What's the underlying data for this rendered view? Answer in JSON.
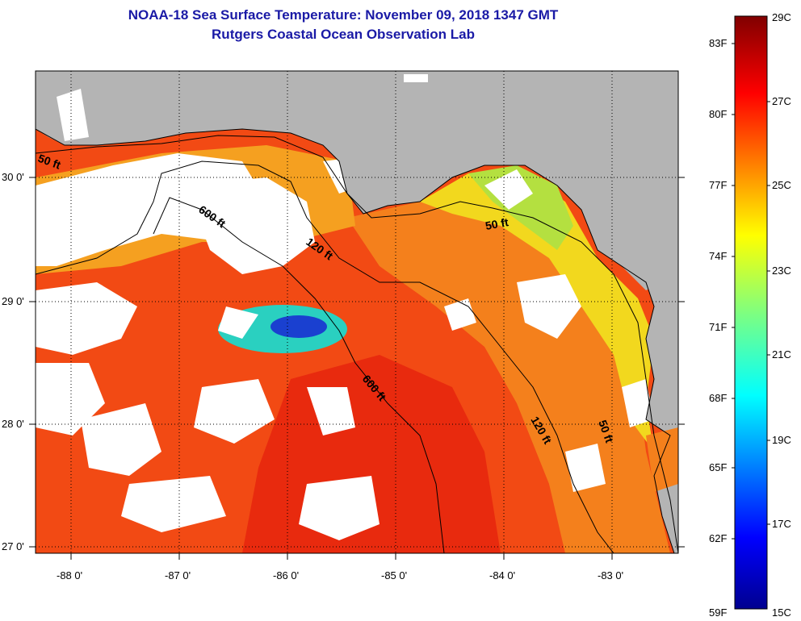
{
  "header": {
    "title": "NOAA-18 Sea Surface Temperature:  November 09, 2018 1347 GMT",
    "subtitle": "Rutgers Coastal Ocean Observation Lab"
  },
  "map": {
    "lon_ticks": [
      "-88 0'",
      "-87 0'",
      "-86 0'",
      "-85 0'",
      "-84 0'",
      "-83 0'"
    ],
    "lat_ticks": [
      "30 0'",
      "29 0'",
      "28 0'",
      "27 0'"
    ],
    "isobath_labels": [
      "50 ft",
      "600 ft",
      "120 ft",
      "50 ft",
      "600 ft",
      "120 ft",
      "50 ft"
    ]
  },
  "colorbar": {
    "fahrenheit_labels": [
      "83F",
      "80F",
      "77F",
      "74F",
      "71F",
      "68F",
      "65F",
      "62F",
      "59F"
    ],
    "celsius_labels": [
      "29C",
      "27C",
      "25C",
      "23C",
      "21C",
      "19C",
      "17C",
      "15C"
    ]
  },
  "colors": {
    "land": "#b4b4b4",
    "cloud": "#ffffff",
    "title": "#1a1aa6",
    "warm": "#f03c14",
    "cool": "#f2d81e"
  }
}
